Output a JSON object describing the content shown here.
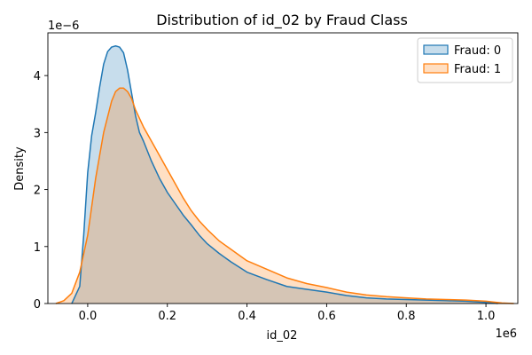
{
  "chart_data": {
    "type": "area",
    "title": "Distribution of id_02 by Fraud Class",
    "xlabel": "id_02",
    "ylabel": "Density",
    "x_offset_label": "1e6",
    "y_offset_label": "1e−6",
    "x_scale": 1000000,
    "y_scale": 1e-06,
    "xlim": [
      -0.1,
      1.08
    ],
    "ylim": [
      0,
      4.75
    ],
    "x_ticks": [
      0.0,
      0.2,
      0.4,
      0.6,
      0.8,
      1.0
    ],
    "x_tick_labels": [
      "0.0",
      "0.2",
      "0.4",
      "0.6",
      "0.8",
      "1.0"
    ],
    "y_ticks": [
      0,
      1,
      2,
      3,
      4
    ],
    "y_tick_labels": [
      "0",
      "1",
      "2",
      "3",
      "4"
    ],
    "grid": false,
    "legend_position": "top-right",
    "series": [
      {
        "name": "Fraud: 0",
        "color": "#1f77b4",
        "x": [
          -0.04,
          -0.02,
          -0.01,
          0.0,
          0.01,
          0.02,
          0.03,
          0.04,
          0.05,
          0.06,
          0.07,
          0.08,
          0.09,
          0.1,
          0.11,
          0.12,
          0.13,
          0.14,
          0.16,
          0.18,
          0.2,
          0.22,
          0.24,
          0.26,
          0.28,
          0.3,
          0.33,
          0.36,
          0.4,
          0.45,
          0.5,
          0.55,
          0.6,
          0.65,
          0.7,
          0.75,
          0.8,
          0.85,
          0.9,
          0.95,
          1.0,
          1.03
        ],
        "y": [
          0.0,
          0.3,
          1.2,
          2.3,
          2.95,
          3.35,
          3.8,
          4.2,
          4.42,
          4.5,
          4.52,
          4.5,
          4.4,
          4.1,
          3.7,
          3.3,
          3.0,
          2.85,
          2.5,
          2.2,
          1.95,
          1.75,
          1.55,
          1.38,
          1.2,
          1.05,
          0.88,
          0.73,
          0.55,
          0.42,
          0.3,
          0.25,
          0.2,
          0.14,
          0.1,
          0.08,
          0.07,
          0.06,
          0.05,
          0.04,
          0.02,
          0.0
        ]
      },
      {
        "name": "Fraud: 1",
        "color": "#ff7f0e",
        "x": [
          -0.08,
          -0.06,
          -0.04,
          -0.02,
          0.0,
          0.02,
          0.04,
          0.06,
          0.07,
          0.08,
          0.09,
          0.1,
          0.11,
          0.12,
          0.14,
          0.16,
          0.18,
          0.2,
          0.22,
          0.24,
          0.26,
          0.28,
          0.3,
          0.33,
          0.36,
          0.4,
          0.45,
          0.5,
          0.55,
          0.6,
          0.65,
          0.7,
          0.75,
          0.8,
          0.85,
          0.9,
          0.95,
          1.0,
          1.04,
          1.07
        ],
        "y": [
          0.0,
          0.05,
          0.18,
          0.55,
          1.2,
          2.2,
          3.0,
          3.55,
          3.72,
          3.78,
          3.78,
          3.72,
          3.6,
          3.4,
          3.1,
          2.85,
          2.6,
          2.35,
          2.1,
          1.85,
          1.63,
          1.45,
          1.3,
          1.1,
          0.95,
          0.75,
          0.6,
          0.45,
          0.35,
          0.28,
          0.2,
          0.15,
          0.12,
          0.1,
          0.08,
          0.07,
          0.06,
          0.04,
          0.01,
          0.0
        ]
      }
    ]
  }
}
